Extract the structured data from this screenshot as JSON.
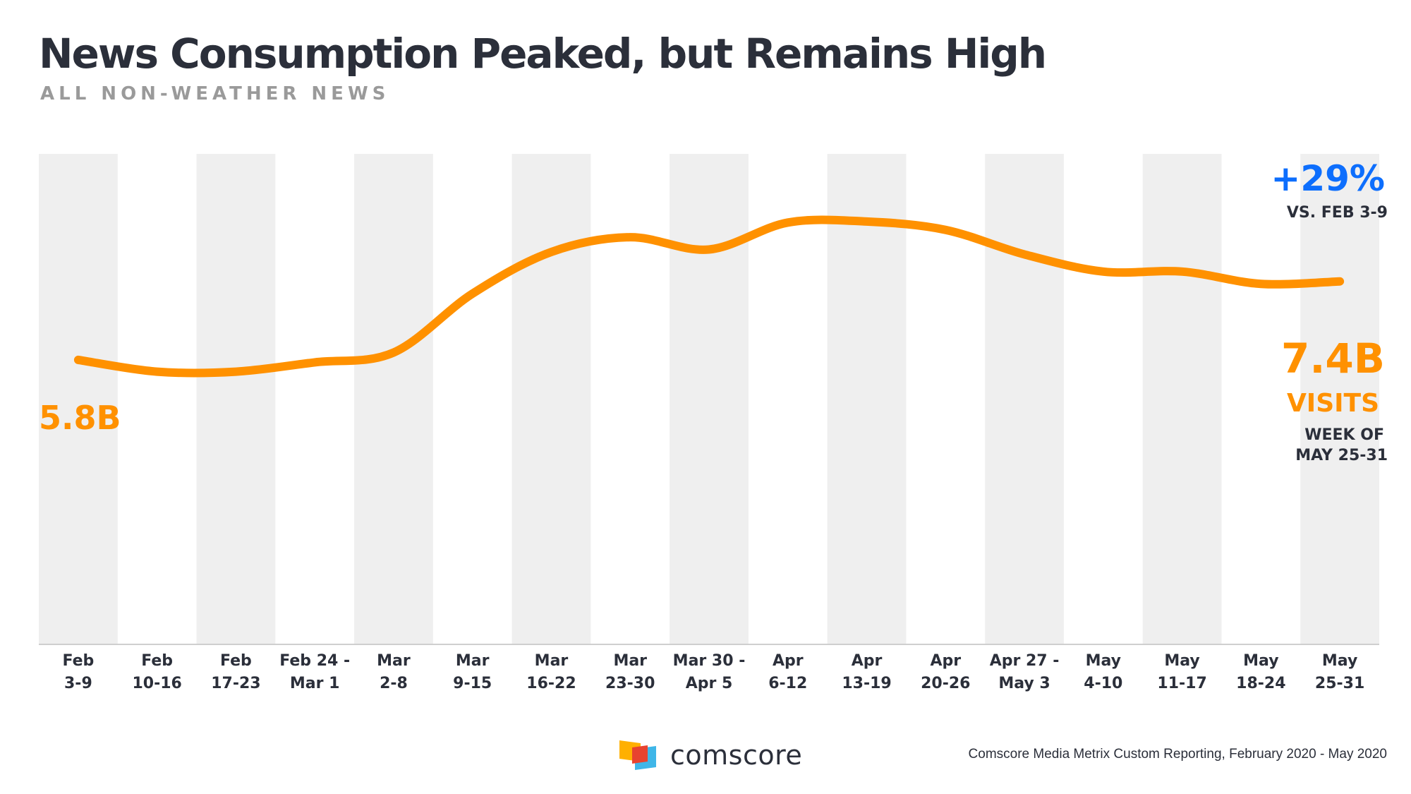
{
  "title": "News Consumption Peaked, but Remains High",
  "subtitle": "ALL NON-WEATHER NEWS",
  "colors": {
    "line": "#ff9100",
    "band": "#efefef",
    "accent_blue": "#0d6efd",
    "text_dark": "#2b2f3a",
    "subtitle_gray": "#9a9a9a"
  },
  "chart_data": {
    "type": "line",
    "title": "News Consumption Peaked, but Remains High",
    "subtitle": "ALL NON-WEATHER NEWS",
    "unit": "B visits",
    "categories": [
      [
        "Feb",
        "3-9"
      ],
      [
        "Feb",
        "10-16"
      ],
      [
        "Feb",
        "17-23"
      ],
      [
        "Feb 24 -",
        "Mar 1"
      ],
      [
        "Mar",
        "2-8"
      ],
      [
        "Mar",
        "9-15"
      ],
      [
        "Mar",
        "16-22"
      ],
      [
        "Mar",
        "23-30"
      ],
      [
        "Mar 30 -",
        "Apr 5"
      ],
      [
        "Apr",
        "6-12"
      ],
      [
        "Apr",
        "13-19"
      ],
      [
        "Apr",
        "20-26"
      ],
      [
        "Apr 27 -",
        "May 3"
      ],
      [
        "May",
        "4-10"
      ],
      [
        "May",
        "11-17"
      ],
      [
        "May",
        "18-24"
      ],
      [
        "May",
        "25-31"
      ]
    ],
    "series": [
      {
        "name": "All non-weather news visits",
        "values": [
          5.8,
          5.56,
          5.56,
          5.75,
          5.95,
          7.15,
          8.0,
          8.3,
          8.05,
          8.6,
          8.62,
          8.45,
          7.95,
          7.6,
          7.6,
          7.35,
          7.4
        ]
      }
    ],
    "ylim": [
      0,
      10.0
    ],
    "grid": false,
    "legend": "none",
    "annotations": {
      "start_label": "5.8B",
      "change_value": "+29%",
      "change_note": "VS. FEB 3-9",
      "end_value": "7.4B",
      "end_unit": "VISITS",
      "end_note_line1": "WEEK OF",
      "end_note_line2": "MAY 25-31"
    }
  },
  "footer": {
    "logo_text": "comscore",
    "source": "Comscore Media Metrix Custom Reporting, February 2020 - May 2020"
  }
}
